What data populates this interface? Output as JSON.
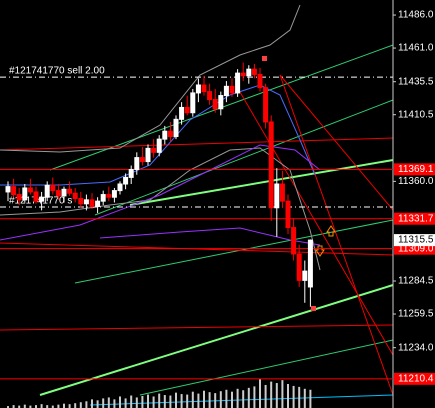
{
  "chart_data": {
    "type": "candlestick",
    "open": [
      11352,
      11356,
      11350,
      11346,
      11355,
      11352,
      11345,
      11348,
      11357,
      11353,
      11349,
      11354,
      11351,
      11347,
      11343,
      11346,
      11341,
      11345,
      11350,
      11348,
      11353,
      11358,
      11363,
      11369,
      11378,
      11375,
      11385,
      11382,
      11392,
      11398,
      11394,
      11407,
      11416,
      11412,
      11427,
      11433,
      11428,
      11422,
      11415,
      11425,
      11432,
      11427,
      11442,
      11440,
      11445,
      11441,
      11431,
      11405,
      11340,
      11358,
      11345,
      11325,
      11305,
      11285,
      11280
    ],
    "high": [
      11360,
      11362,
      11355,
      11358,
      11362,
      11356,
      11352,
      11360,
      11363,
      11358,
      11356,
      11360,
      11355,
      11352,
      11350,
      11351,
      11348,
      11353,
      11356,
      11355,
      11360,
      11366,
      11372,
      11382,
      11386,
      11388,
      11392,
      11395,
      11402,
      11405,
      11410,
      11420,
      11425,
      11430,
      11438,
      11440,
      11434,
      11430,
      11428,
      11436,
      11438,
      11445,
      11450,
      11448,
      11449,
      11446,
      11434,
      11410,
      11370,
      11368,
      11350,
      11332,
      11312,
      11300,
      11316
    ],
    "low": [
      11345,
      11348,
      11342,
      11344,
      11350,
      11343,
      11338,
      11345,
      11350,
      11346,
      11344,
      11349,
      11344,
      11340,
      11338,
      11339,
      11336,
      11342,
      11345,
      11344,
      11350,
      11354,
      11358,
      11365,
      11372,
      11372,
      11378,
      11379,
      11388,
      11390,
      11392,
      11403,
      11410,
      11409,
      11420,
      11425,
      11418,
      11412,
      11410,
      11420,
      11424,
      11424,
      11436,
      11434,
      11438,
      11428,
      11400,
      11330,
      11318,
      11340,
      11320,
      11300,
      11280,
      11268,
      11265
    ],
    "close": [
      11356,
      11350,
      11346,
      11355,
      11352,
      11345,
      11348,
      11357,
      11353,
      11349,
      11354,
      11351,
      11347,
      11343,
      11346,
      11341,
      11345,
      11350,
      11348,
      11353,
      11358,
      11363,
      11369,
      11378,
      11375,
      11385,
      11382,
      11392,
      11398,
      11394,
      11407,
      11416,
      11412,
      11427,
      11433,
      11428,
      11422,
      11415,
      11425,
      11432,
      11427,
      11442,
      11440,
      11445,
      11441,
      11431,
      11405,
      11340,
      11358,
      11345,
      11325,
      11305,
      11285,
      11292,
      11315.5
    ],
    "volume": [
      4,
      6,
      5,
      7,
      5,
      6,
      8,
      6,
      5,
      7,
      9,
      8,
      10,
      12,
      14,
      18,
      16,
      20,
      22,
      18,
      24,
      20,
      26,
      22,
      25,
      28,
      24,
      30,
      27,
      26,
      32,
      29,
      28,
      34,
      30,
      36,
      33,
      31,
      35,
      38,
      34,
      40,
      37,
      42,
      45,
      60,
      48,
      55,
      52,
      58,
      50,
      46,
      44,
      40,
      38
    ],
    "volume_ylim": [
      0,
      100
    ],
    "up_color": "#ffffff",
    "down_color": "#ff0000",
    "ylim": [
      11188.3,
      11497.4
    ],
    "yticks": [
      {
        "value": 11486,
        "label": "11486.0"
      },
      {
        "value": 11461,
        "label": "11461.0"
      },
      11435.5,
      11410.5,
      {
        "value": 11360,
        "label": "11360.0"
      },
      11284.5,
      11259.5,
      {
        "value": 11234,
        "label": "11234.0"
      }
    ],
    "levels": [
      11369.1,
      11331.7,
      {
        "value": 11309,
        "label": "11309.0"
      },
      11210.4
    ],
    "level_color": "#ff0000",
    "current_price": 11315.5,
    "orders": [
      {
        "label": "#121741770 sell 2.00",
        "price": 11439
      },
      {
        "label": "#121741770 s",
        "price": 11340.6
      }
    ]
  }
}
